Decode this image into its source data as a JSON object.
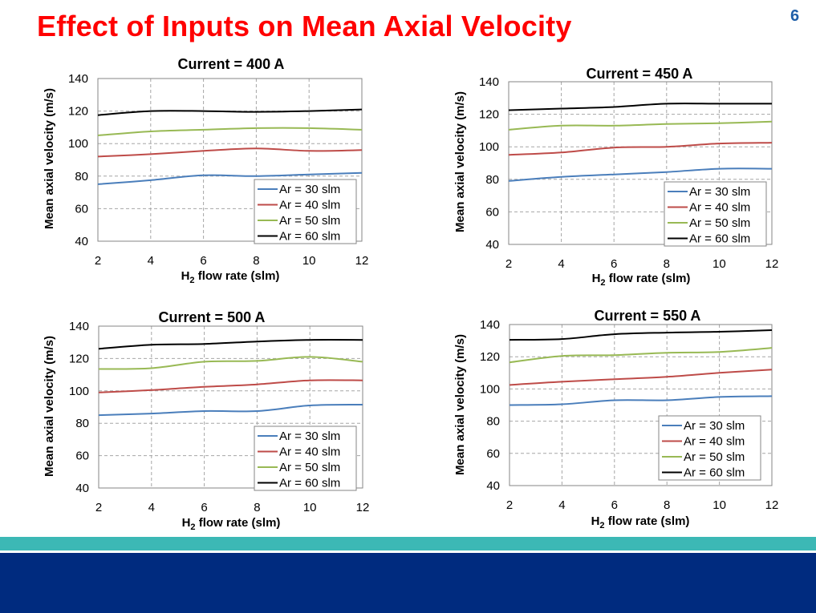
{
  "slide": {
    "title": "Effect of Inputs on Mean Axial Velocity",
    "page_number": "6"
  },
  "colors": {
    "title": "#ff0000",
    "page_number": "#1f5fa8",
    "teal_band": "#3cb8b5",
    "navy_band": "#002b7f"
  },
  "chart_data": [
    {
      "type": "line",
      "title": "Current = 400 A",
      "xlabel": "H2 flow rate (slm)",
      "ylabel": "Mean axial velocity (m/s)",
      "x": [
        2,
        4,
        6,
        8,
        10,
        12
      ],
      "xlim": [
        2,
        12
      ],
      "ylim": [
        40,
        140
      ],
      "xticks": [
        "2",
        "4",
        "6",
        "8",
        "10",
        "12"
      ],
      "yticks": [
        "40",
        "60",
        "80",
        "100",
        "120",
        "140"
      ],
      "grid": true,
      "legend": "bottom-right",
      "series": [
        {
          "name": "Ar = 30 slm",
          "color": "#4a7ebb",
          "values": [
            75,
            77.5,
            80.5,
            80,
            81,
            82
          ]
        },
        {
          "name": "Ar = 40 slm",
          "color": "#be4b48",
          "values": [
            92,
            93.5,
            95.5,
            97,
            95.5,
            96
          ]
        },
        {
          "name": "Ar = 50 slm",
          "color": "#98b954",
          "values": [
            105,
            107.5,
            108.5,
            109.5,
            109.5,
            108.5
          ]
        },
        {
          "name": "Ar = 60 slm",
          "color": "#000000",
          "values": [
            117.5,
            120,
            120,
            119.5,
            120,
            121
          ]
        }
      ]
    },
    {
      "type": "line",
      "title": "Current = 450 A",
      "xlabel": "H2 flow rate (slm)",
      "ylabel": "Mean axial velocity (m/s)",
      "x": [
        2,
        4,
        6,
        8,
        10,
        12
      ],
      "xlim": [
        2,
        12
      ],
      "ylim": [
        40,
        140
      ],
      "xticks": [
        "2",
        "4",
        "6",
        "8",
        "10",
        "12"
      ],
      "yticks": [
        "40",
        "60",
        "80",
        "100",
        "120",
        "140"
      ],
      "grid": true,
      "legend": "bottom-right",
      "series": [
        {
          "name": "Ar = 30 slm",
          "color": "#4a7ebb",
          "values": [
            79,
            81.5,
            83,
            84.5,
            86.5,
            86.5
          ]
        },
        {
          "name": "Ar = 40 slm",
          "color": "#be4b48",
          "values": [
            95,
            96.5,
            99.5,
            100,
            102,
            102.5
          ]
        },
        {
          "name": "Ar = 50 slm",
          "color": "#98b954",
          "values": [
            110.5,
            113,
            113,
            114,
            114.5,
            115.5
          ]
        },
        {
          "name": "Ar = 60 slm",
          "color": "#000000",
          "values": [
            122.5,
            123.5,
            124.5,
            126.5,
            126.5,
            126.5
          ]
        }
      ]
    },
    {
      "type": "line",
      "title": "Current = 500 A",
      "xlabel": "H2 flow rate (slm)",
      "ylabel": "Mean axial velocity (m/s)",
      "x": [
        2,
        4,
        6,
        8,
        10,
        12
      ],
      "xlim": [
        2,
        12
      ],
      "ylim": [
        40,
        140
      ],
      "xticks": [
        "2",
        "4",
        "6",
        "8",
        "10",
        "12"
      ],
      "yticks": [
        "40",
        "60",
        "80",
        "100",
        "120",
        "140"
      ],
      "grid": true,
      "legend": "bottom-right",
      "series": [
        {
          "name": "Ar = 30 slm",
          "color": "#4a7ebb",
          "values": [
            85,
            86,
            87.5,
            87.5,
            91,
            91.5
          ]
        },
        {
          "name": "Ar = 40 slm",
          "color": "#be4b48",
          "values": [
            99,
            100.5,
            102.5,
            104,
            106.5,
            106.5
          ]
        },
        {
          "name": "Ar = 50 slm",
          "color": "#98b954",
          "values": [
            113.5,
            114,
            118,
            118.5,
            121,
            118
          ]
        },
        {
          "name": "Ar = 60 slm",
          "color": "#000000",
          "values": [
            126,
            128.5,
            129,
            130.5,
            131.5,
            131.5
          ]
        }
      ]
    },
    {
      "type": "line",
      "title": "Current = 550 A",
      "xlabel": "H2 flow rate (slm)",
      "ylabel": "Mean axial velocity (m/s)",
      "x": [
        2,
        4,
        6,
        8,
        10,
        12
      ],
      "xlim": [
        2,
        12
      ],
      "ylim": [
        40,
        140
      ],
      "xticks": [
        "2",
        "4",
        "6",
        "8",
        "10",
        "12"
      ],
      "yticks": [
        "40",
        "60",
        "80",
        "100",
        "120",
        "140"
      ],
      "grid": true,
      "legend": "bottom-right",
      "series": [
        {
          "name": "Ar = 30 slm",
          "color": "#4a7ebb",
          "values": [
            90,
            90.5,
            93,
            93,
            95,
            95.5
          ]
        },
        {
          "name": "Ar = 40 slm",
          "color": "#be4b48",
          "values": [
            102.5,
            104.5,
            106,
            107.5,
            110,
            112
          ]
        },
        {
          "name": "Ar = 50 slm",
          "color": "#98b954",
          "values": [
            116.5,
            120.5,
            121,
            122.5,
            123,
            125.5
          ]
        },
        {
          "name": "Ar = 60 slm",
          "color": "#000000",
          "values": [
            130.5,
            131,
            134,
            135,
            135.5,
            136.5
          ]
        }
      ]
    }
  ]
}
